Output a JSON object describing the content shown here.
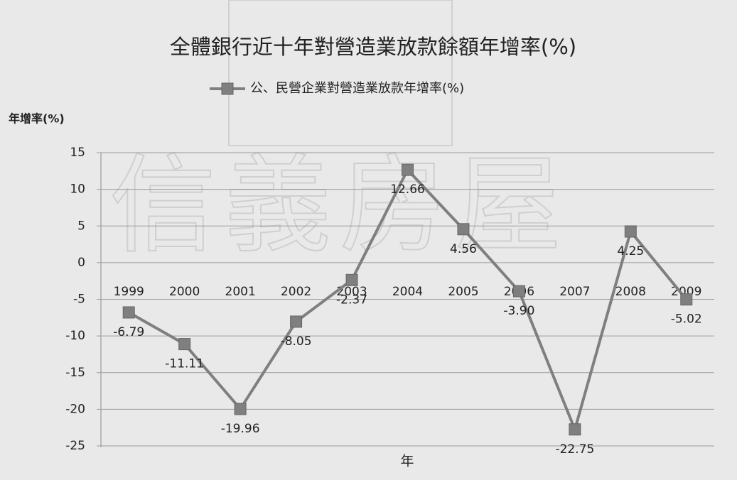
{
  "chart_data": {
    "type": "line",
    "title": "全體銀行近十年對營造業放款餘額年增率(%)",
    "y_label": "年增率(%)",
    "x_label": "年",
    "watermark": "信義房屋",
    "categories": [
      "1999",
      "2000",
      "2001",
      "2002",
      "2003",
      "2004",
      "2005",
      "2006",
      "2007",
      "2008",
      "2009"
    ],
    "series": [
      {
        "name": "公、民營企業對營造業放款年增率(%)",
        "color": "#7f7f7f",
        "values": [
          -6.79,
          -11.11,
          -19.96,
          -8.05,
          -2.37,
          12.66,
          4.56,
          -3.9,
          -22.75,
          4.25,
          -5.02
        ],
        "value_labels": [
          "-6.79",
          "-11.11",
          "-19.96",
          "-8.05",
          "-2.37",
          "12.66",
          "4.56",
          "-3.90",
          "-22.75",
          "4.25",
          "-5.02"
        ]
      }
    ],
    "ylim": [
      -25,
      15
    ],
    "yticks": [
      -25,
      -20,
      -15,
      -10,
      -5,
      0,
      5,
      10,
      15
    ],
    "grid": true,
    "legend": "top"
  }
}
